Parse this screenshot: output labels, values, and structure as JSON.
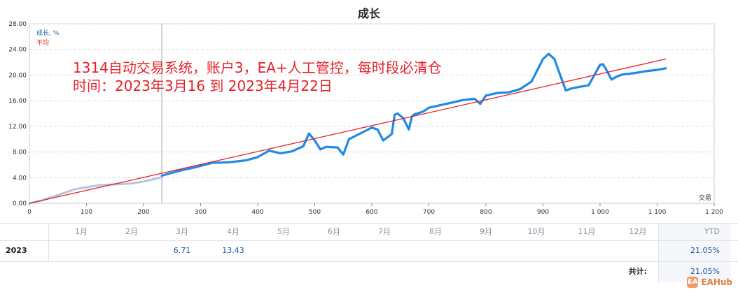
{
  "title": "成长",
  "legend": {
    "growth_label": "成长, %",
    "average_label": "平均",
    "growth_color": "#1e8ae6",
    "history_color": "#b3c6dd",
    "average_color": "#e6212a"
  },
  "annotation": {
    "line1": "1314自动交易系统，账户3，EA+人工管控，每时段必清仓",
    "line2": "时间：2023年3月16 到 2023年4月22日",
    "color": "#e6212a"
  },
  "chart_data": {
    "type": "line",
    "title": "成长",
    "xlabel": "交易",
    "ylabel": "成长, %",
    "xlim": [
      0,
      1200
    ],
    "ylim": [
      0,
      28
    ],
    "x_ticks": [
      0,
      100,
      200,
      300,
      400,
      500,
      600,
      700,
      800,
      900,
      1000,
      1100,
      1200
    ],
    "x_tick_labels": [
      "0",
      "100",
      "200",
      "300",
      "400",
      "500",
      "600",
      "700",
      "800",
      "900",
      "1 000",
      "1 100",
      "1 200"
    ],
    "y_ticks": [
      0,
      4,
      8,
      12,
      16,
      20,
      24,
      28
    ],
    "y_tick_labels": [
      "0.00",
      "4.00",
      "8.00",
      "12.00",
      "16.00",
      "20.00",
      "24.00",
      "28.00"
    ],
    "grid": true,
    "legend_position": "top-left",
    "divider_x": 232,
    "series": [
      {
        "name": "成长, %",
        "role": "history",
        "x": [
          0,
          20,
          40,
          60,
          80,
          100,
          120,
          140,
          160,
          180,
          200,
          220,
          232
        ],
        "y": [
          0.0,
          0.4,
          1.0,
          1.6,
          2.2,
          2.5,
          2.8,
          2.9,
          3.0,
          3.1,
          3.4,
          3.8,
          4.1
        ]
      },
      {
        "name": "成长, %",
        "role": "growth",
        "x": [
          232,
          260,
          290,
          320,
          350,
          380,
          400,
          420,
          440,
          460,
          480,
          490,
          500,
          510,
          520,
          540,
          550,
          560,
          580,
          600,
          610,
          620,
          635,
          640,
          645,
          655,
          665,
          670,
          675,
          680,
          690,
          700,
          720,
          740,
          760,
          780,
          790,
          800,
          820,
          840,
          860,
          880,
          900,
          910,
          920,
          930,
          940,
          950,
          960,
          980,
          1000,
          1005,
          1010,
          1020,
          1030,
          1040,
          1060,
          1080,
          1100,
          1115
        ],
        "y": [
          4.3,
          5.0,
          5.6,
          6.3,
          6.4,
          6.7,
          7.2,
          8.2,
          7.8,
          8.1,
          8.9,
          10.9,
          9.8,
          8.4,
          8.8,
          8.7,
          7.6,
          10.0,
          10.9,
          11.8,
          11.5,
          9.8,
          10.8,
          13.8,
          14.0,
          13.3,
          11.5,
          13.5,
          13.9,
          14.0,
          14.3,
          14.9,
          15.3,
          15.7,
          16.1,
          16.3,
          15.5,
          16.8,
          17.2,
          17.3,
          17.8,
          19.0,
          22.5,
          23.3,
          22.5,
          20.0,
          17.6,
          17.9,
          18.1,
          18.4,
          21.6,
          21.7,
          21.0,
          19.3,
          19.8,
          20.1,
          20.3,
          20.6,
          20.8,
          21.05
        ]
      },
      {
        "name": "平均",
        "role": "average",
        "x": [
          0,
          1115
        ],
        "y": [
          0.0,
          22.5
        ]
      }
    ]
  },
  "table": {
    "months": [
      "1月",
      "2月",
      "3月",
      "4月",
      "5月",
      "6月",
      "7月",
      "8月",
      "9月",
      "10月",
      "11月",
      "12月"
    ],
    "ytd_header": "YTD",
    "rows": [
      {
        "year": "2023",
        "values": [
          "",
          "",
          "6.71",
          "13.43",
          "",
          "",
          "",
          "",
          "",
          "",
          "",
          ""
        ],
        "ytd": "21.05%"
      }
    ],
    "total_label": "共计:",
    "total_value": "21.05%"
  },
  "watermark": {
    "logo_text": "EA",
    "text": "EAHub"
  }
}
